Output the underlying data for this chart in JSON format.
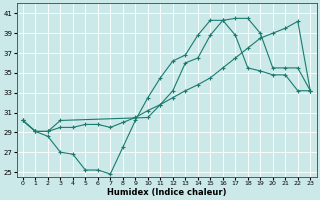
{
  "xlabel": "Humidex (Indice chaleur)",
  "bg_color": "#cce9e9",
  "line_color": "#1a7a6e",
  "grid_color": "#ffffff",
  "xlim": [
    -0.5,
    23.5
  ],
  "ylim": [
    24.5,
    42
  ],
  "xticks": [
    0,
    1,
    2,
    3,
    4,
    5,
    6,
    7,
    8,
    9,
    10,
    11,
    12,
    13,
    14,
    15,
    16,
    17,
    18,
    19,
    20,
    21,
    22,
    23
  ],
  "yticks": [
    25,
    27,
    29,
    31,
    33,
    35,
    37,
    39,
    41
  ],
  "line1_x": [
    0,
    1,
    2,
    3,
    4,
    5,
    6,
    7,
    8,
    9,
    10,
    11,
    12,
    13,
    14,
    15,
    16,
    17,
    18,
    19,
    20,
    21,
    22,
    23
  ],
  "line1_y": [
    30.2,
    29.1,
    28.6,
    27.0,
    26.8,
    25.2,
    25.2,
    24.8,
    27.5,
    30.2,
    32.5,
    34.5,
    36.2,
    36.8,
    38.8,
    40.3,
    40.3,
    38.8,
    35.5,
    35.2,
    34.8,
    34.8,
    33.2,
    33.2
  ],
  "line2_x": [
    0,
    1,
    2,
    3,
    10,
    11,
    12,
    13,
    14,
    15,
    16,
    17,
    18,
    19,
    20,
    21,
    22,
    23
  ],
  "line2_y": [
    30.2,
    29.1,
    29.1,
    30.2,
    30.5,
    31.8,
    33.2,
    36.0,
    36.5,
    38.8,
    40.3,
    40.5,
    40.5,
    39.0,
    35.5,
    35.5,
    35.5,
    33.2
  ],
  "line3_x": [
    0,
    1,
    2,
    3,
    4,
    5,
    6,
    7,
    8,
    9,
    10,
    11,
    12,
    13,
    14,
    15,
    16,
    17,
    18,
    19,
    20,
    21,
    22,
    23
  ],
  "line3_y": [
    30.2,
    29.1,
    29.1,
    29.5,
    29.5,
    29.8,
    29.8,
    29.5,
    30.0,
    30.5,
    31.2,
    31.8,
    32.5,
    33.2,
    33.8,
    34.5,
    35.5,
    36.5,
    37.5,
    38.5,
    39.0,
    39.5,
    40.2,
    33.2
  ]
}
